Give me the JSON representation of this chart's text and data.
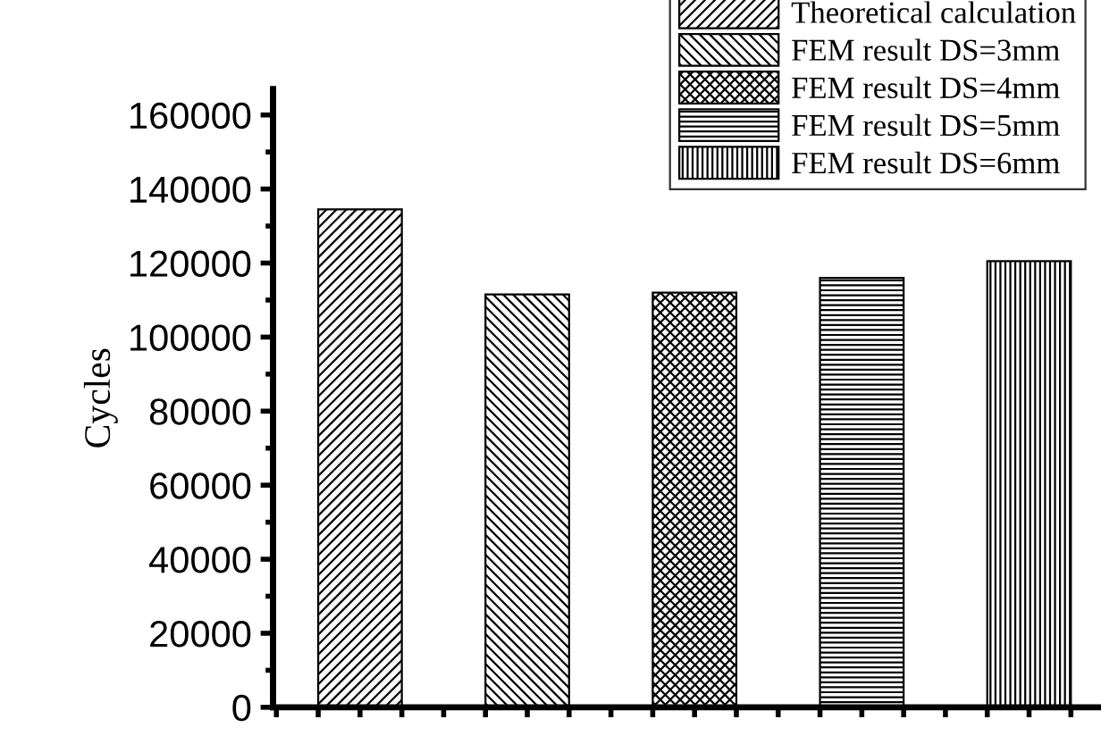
{
  "chart_data": {
    "type": "bar",
    "ylabel": "Cycles",
    "categories": [
      null,
      null,
      null,
      null,
      null
    ],
    "series": [
      {
        "name": "Theoretical calculation",
        "values": [
          134500,
          null,
          null,
          null,
          null
        ]
      },
      {
        "name": "FEM result DS=3mm",
        "values": [
          null,
          111500,
          null,
          null,
          null
        ]
      },
      {
        "name": "FEM result DS=4mm",
        "values": [
          null,
          null,
          112000,
          null,
          null
        ]
      },
      {
        "name": "FEM result DS=5mm",
        "values": [
          null,
          null,
          null,
          116000,
          null
        ]
      },
      {
        "name": "FEM result DS=6mm",
        "values": [
          null,
          null,
          null,
          null,
          120500
        ]
      }
    ],
    "ylim": [
      0,
      167000
    ],
    "yticks": [
      0,
      20000,
      40000,
      60000,
      80000,
      100000,
      120000,
      140000,
      160000
    ],
    "tick_labels": "y",
    "legend": "top right",
    "grid": false
  }
}
